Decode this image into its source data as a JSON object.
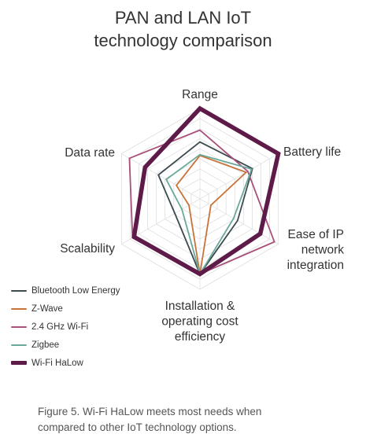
{
  "chart_data": {
    "type": "radar",
    "title_lines": [
      "PAN and LAN IoT",
      "technology comparison"
    ],
    "axes": [
      [
        "Range"
      ],
      [
        "Battery life"
      ],
      [
        "Ease of IP",
        "network",
        "integration"
      ],
      [
        "Installation &",
        "operating cost",
        "efficiency"
      ],
      [
        "Scalability"
      ],
      [
        "Data rate"
      ]
    ],
    "rlim": [
      0,
      10
    ],
    "grid_levels": 9,
    "grid": true,
    "legend_position": "bottom-left",
    "series": [
      {
        "name": "Bluetooth Low Energy",
        "color": "#3d4a4f",
        "values": [
          6.3,
          6.7,
          4.8,
          8.3,
          3.2,
          5.3
        ]
      },
      {
        "name": "Z-Wave",
        "color": "#c8733a",
        "values": [
          4.8,
          5.9,
          1.4,
          8.3,
          1.4,
          3.0
        ]
      },
      {
        "name": "2.4 GHz Wi-Fi",
        "color": "#a8507a",
        "values": [
          7.6,
          6.1,
          9.5,
          8.3,
          8.6,
          9.0
        ]
      },
      {
        "name": "Zigbee",
        "color": "#6aa99a",
        "values": [
          4.9,
          6.6,
          4.3,
          8.3,
          2.3,
          4.3
        ]
      },
      {
        "name": "Wi-Fi HaLow",
        "color": "#5e1a48",
        "values": [
          10,
          10,
          7.7,
          8.3,
          8.4,
          7.0
        ]
      }
    ]
  },
  "caption": {
    "line1": "Figure 5. Wi-Fi HaLow meets most needs when",
    "line2": "compared to other IoT technology options."
  }
}
